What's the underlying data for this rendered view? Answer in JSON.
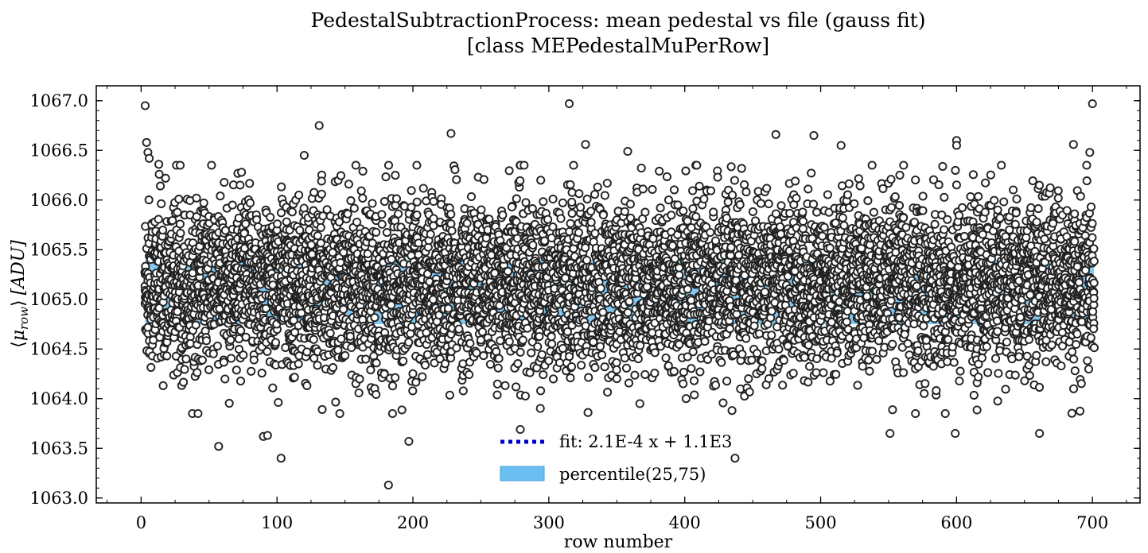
{
  "chart_data": {
    "type": "scatter",
    "title": "PedestalSubtractionProcess: mean pedestal vs file (gauss fit)",
    "subtitle": "[class MEPedestalMuPerRow]",
    "xlabel": "row number",
    "ylabel": "⟨μrow⟩ [ADU]",
    "ylabel_parts": {
      "open": "⟨",
      "mu": "μ",
      "sub": "row",
      "close": "⟩",
      "unit": "[ADU]"
    },
    "xlim": [
      -33,
      735
    ],
    "ylim": [
      1062.95,
      1067.15
    ],
    "x_ticks": [
      0,
      100,
      200,
      300,
      400,
      500,
      600,
      700
    ],
    "x_tick_labels": [
      "0",
      "100",
      "200",
      "300",
      "400",
      "500",
      "600",
      "700"
    ],
    "y_ticks": [
      1063.0,
      1063.5,
      1064.0,
      1064.5,
      1065.0,
      1065.5,
      1066.0,
      1066.5,
      1067.0
    ],
    "y_tick_labels": [
      "1063.0",
      "1063.5",
      "1064.0",
      "1064.5",
      "1065.0",
      "1065.5",
      "1066.0",
      "1066.5",
      "1067.0"
    ],
    "grid": false,
    "legend_position": "lower-center",
    "legend": [
      {
        "label": "fit: 2.1E-4 x + 1.1E3",
        "style": "dotted-line",
        "color": "#0000cc"
      },
      {
        "label": "percentile(25,75)",
        "style": "filled-box",
        "color": "#6bbff0"
      }
    ],
    "fit": {
      "slope": 0.00021,
      "intercept": 1065.05
    },
    "percentile_band": {
      "low": 1064.75,
      "high": 1065.4,
      "color": "#6bbff0"
    },
    "marker": {
      "shape": "open-circle",
      "edge_color": "#222222",
      "face_color": "#ffffff"
    },
    "series": [
      {
        "points_summary": "dense cloud of roughly 10 points per row over rows 3–701, y mostly 1064.3–1066.0",
        "x_range": [
          3,
          701
        ],
        "y_center": 1065.15,
        "y_spread": 0.42,
        "points_per_row": 10,
        "outliers": [
          [
            3,
            1066.95
          ],
          [
            4,
            1066.58
          ],
          [
            5,
            1066.48
          ],
          [
            6,
            1066.42
          ],
          [
            13,
            1066.36
          ],
          [
            57,
            1063.52
          ],
          [
            90,
            1063.62
          ],
          [
            93,
            1063.63
          ],
          [
            103,
            1063.4
          ],
          [
            182,
            1063.13
          ],
          [
            197,
            1063.57
          ],
          [
            131,
            1066.75
          ],
          [
            228,
            1066.67
          ],
          [
            315,
            1066.97
          ],
          [
            327,
            1066.56
          ],
          [
            437,
            1063.4
          ],
          [
            467,
            1066.66
          ],
          [
            495,
            1066.65
          ],
          [
            551,
            1063.65
          ],
          [
            599,
            1063.65
          ],
          [
            600,
            1066.6
          ],
          [
            661,
            1063.65
          ],
          [
            686,
            1066.56
          ],
          [
            700,
            1066.97
          ],
          [
            698,
            1066.48
          ],
          [
            279,
            1063.69
          ],
          [
            515,
            1066.55
          ],
          [
            358,
            1066.49
          ],
          [
            120,
            1066.45
          ],
          [
            600,
            1066.55
          ]
        ]
      }
    ]
  }
}
